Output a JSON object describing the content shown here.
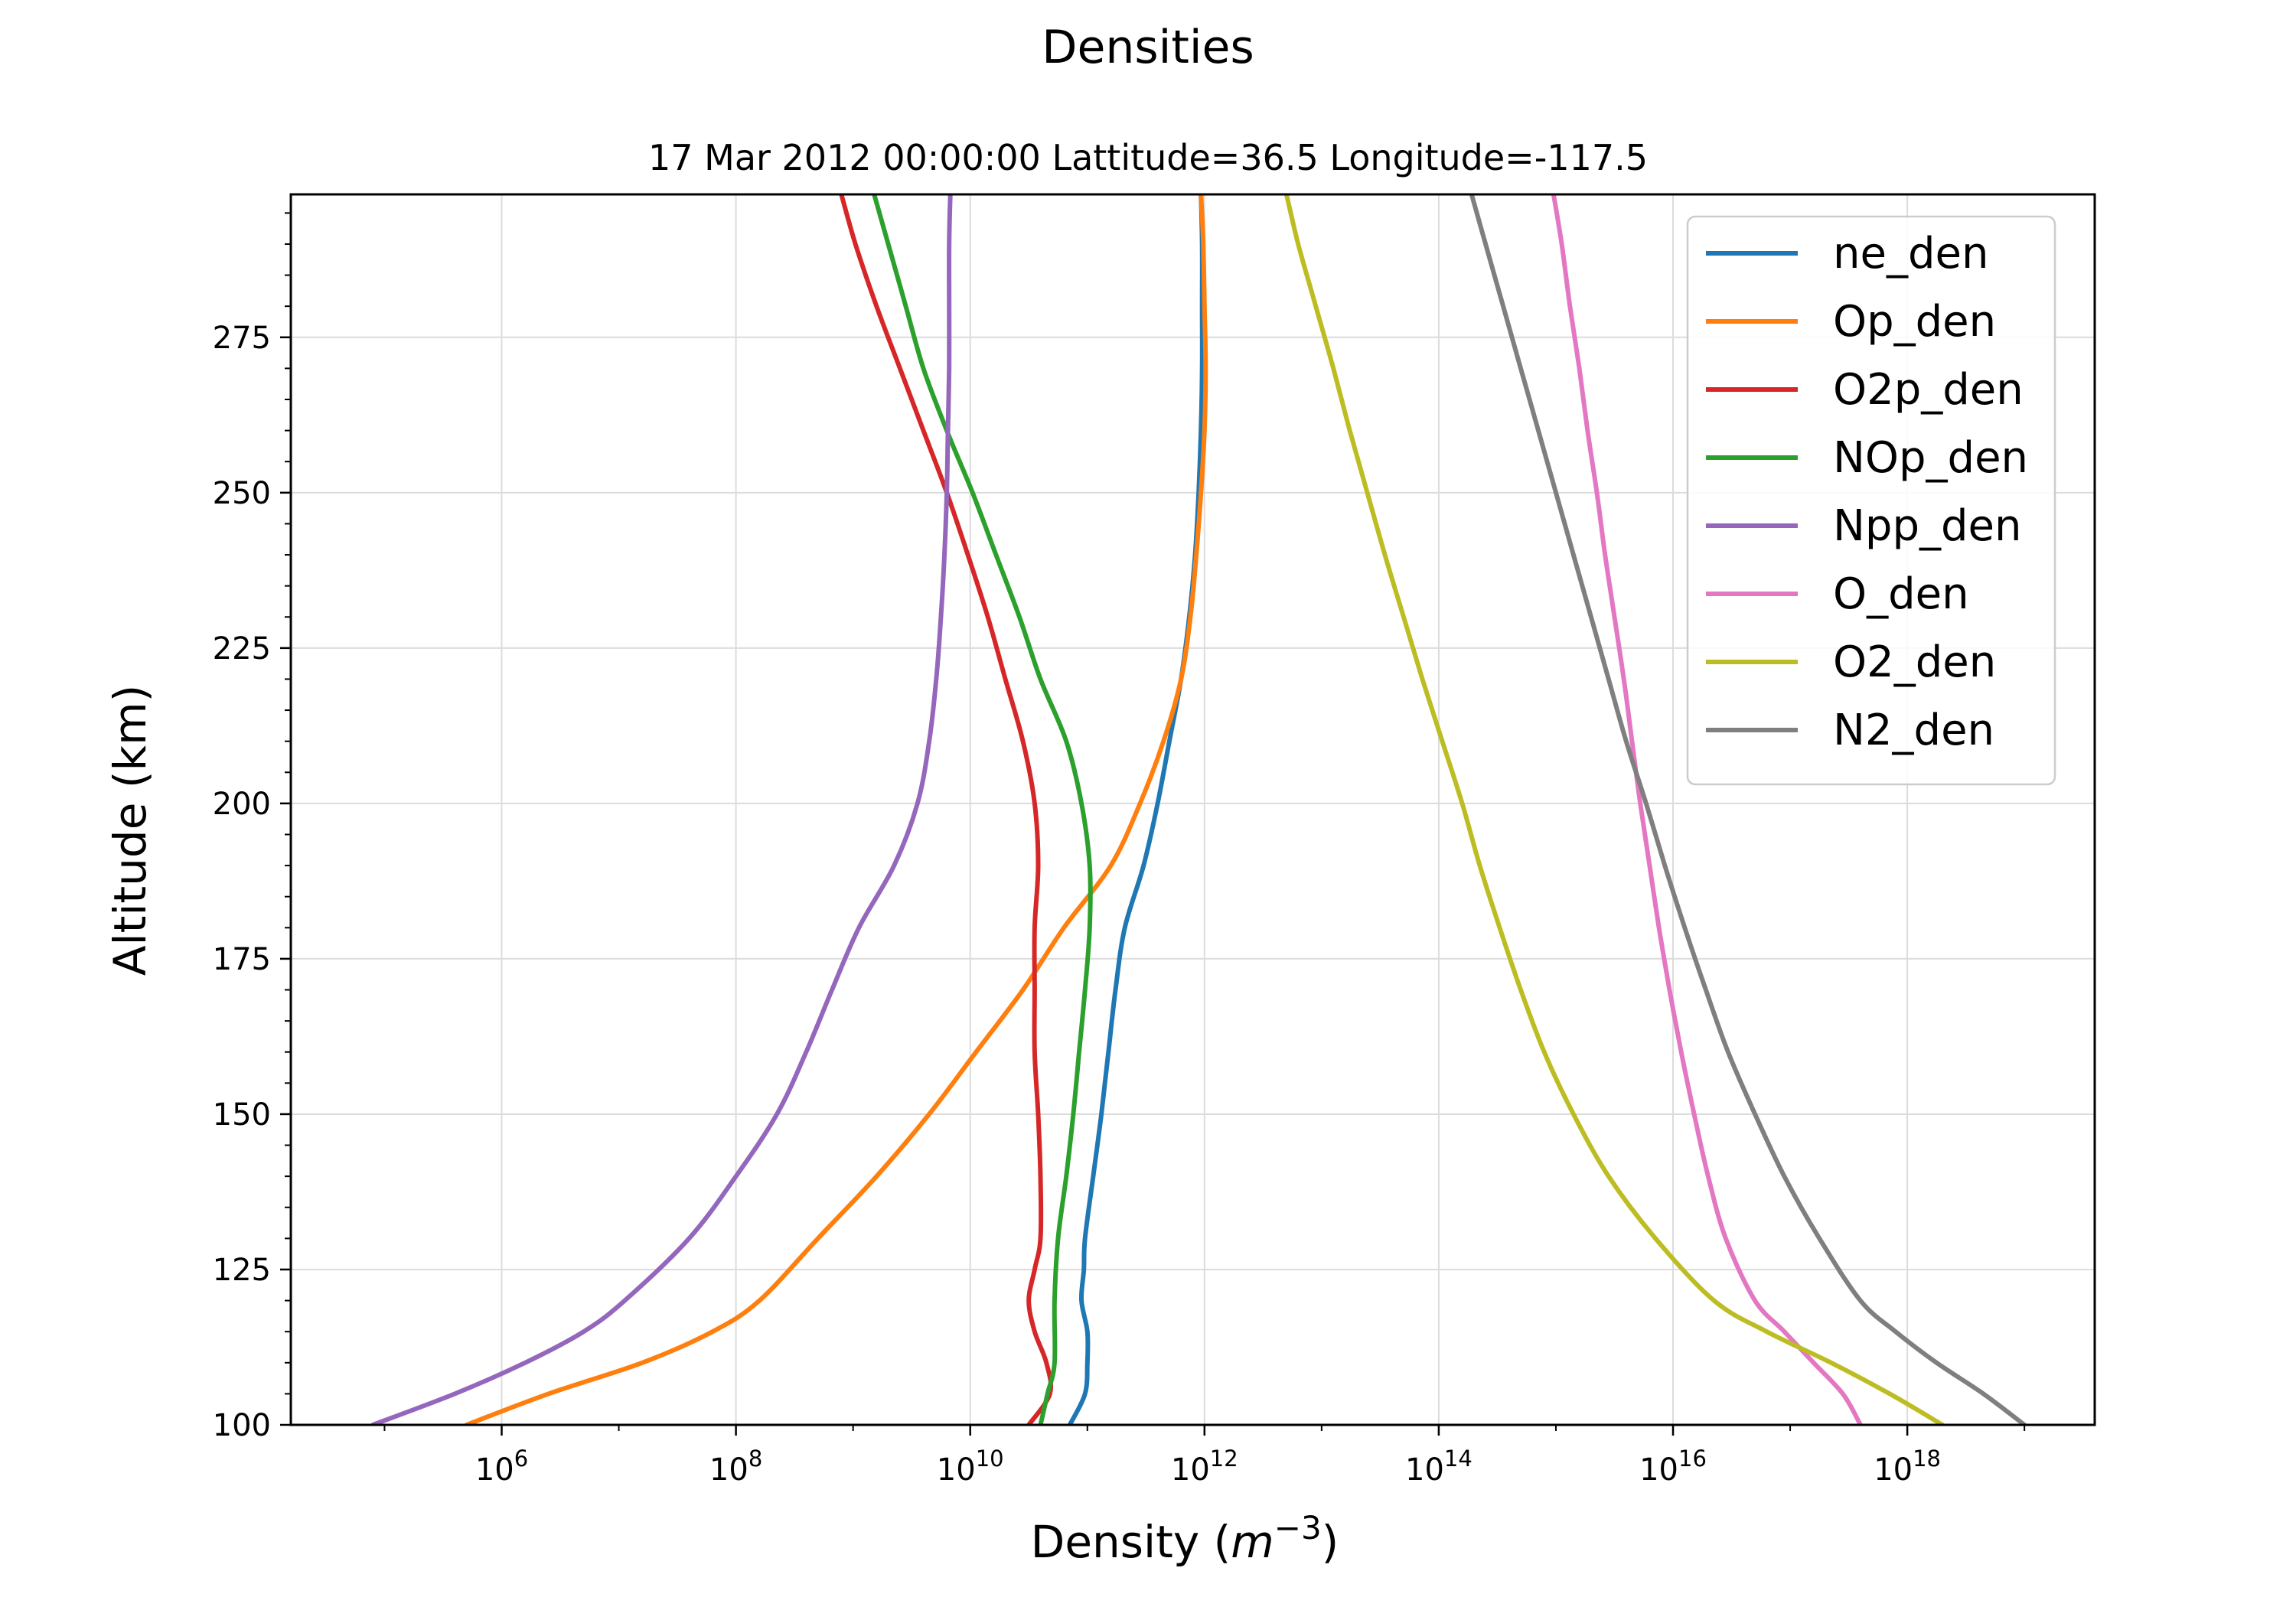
{
  "chart_data": {
    "type": "line",
    "title": "Densities",
    "subtitle": "17 Mar 2012 00:00:00 Lattitude=36.5 Longitude=-117.5",
    "xlabel": "Density ($m^{-3}$)",
    "xlabel_parts": {
      "prefix": "Density (",
      "var": "m",
      "exp": "−3",
      "suffix": ")"
    },
    "ylabel": "Altitude (km)",
    "xscale": "log",
    "xlim_exp": [
      4.2,
      19.6
    ],
    "ylim": [
      100,
      298
    ],
    "x_ticks": [
      {
        "base": "10",
        "exp": "6",
        "value_exp": 6
      },
      {
        "base": "10",
        "exp": "8",
        "value_exp": 8
      },
      {
        "base": "10",
        "exp": "10",
        "value_exp": 10
      },
      {
        "base": "10",
        "exp": "12",
        "value_exp": 12
      },
      {
        "base": "10",
        "exp": "14",
        "value_exp": 14
      },
      {
        "base": "10",
        "exp": "16",
        "value_exp": 16
      },
      {
        "base": "10",
        "exp": "18",
        "value_exp": 18
      }
    ],
    "y_ticks": [
      "100",
      "125",
      "150",
      "175",
      "200",
      "225",
      "250",
      "275"
    ],
    "grid": true,
    "legend_position": "top-right",
    "series": [
      {
        "name": "ne_den",
        "color": "#1f77b4",
        "points": [
          [
            100,
            10.85
          ],
          [
            105,
            10.98
          ],
          [
            110,
            11.0
          ],
          [
            115,
            11.0
          ],
          [
            120,
            10.95
          ],
          [
            125,
            10.97
          ],
          [
            130,
            10.98
          ],
          [
            140,
            11.05
          ],
          [
            150,
            11.12
          ],
          [
            160,
            11.18
          ],
          [
            170,
            11.24
          ],
          [
            180,
            11.32
          ],
          [
            190,
            11.48
          ],
          [
            200,
            11.6
          ],
          [
            210,
            11.7
          ],
          [
            220,
            11.8
          ],
          [
            230,
            11.87
          ],
          [
            240,
            11.92
          ],
          [
            250,
            11.95
          ],
          [
            260,
            11.97
          ],
          [
            270,
            11.98
          ],
          [
            280,
            11.98
          ],
          [
            290,
            11.98
          ],
          [
            298,
            11.97
          ]
        ]
      },
      {
        "name": "Op_den",
        "color": "#ff7f0e",
        "points": [
          [
            100,
            5.7
          ],
          [
            105,
            6.4
          ],
          [
            110,
            7.2
          ],
          [
            115,
            7.8
          ],
          [
            120,
            8.2
          ],
          [
            130,
            8.7
          ],
          [
            140,
            9.2
          ],
          [
            150,
            9.65
          ],
          [
            160,
            10.05
          ],
          [
            170,
            10.45
          ],
          [
            180,
            10.8
          ],
          [
            190,
            11.2
          ],
          [
            200,
            11.45
          ],
          [
            210,
            11.65
          ],
          [
            220,
            11.8
          ],
          [
            230,
            11.88
          ],
          [
            240,
            11.93
          ],
          [
            250,
            11.97
          ],
          [
            260,
            12.0
          ],
          [
            270,
            12.01
          ],
          [
            280,
            12.0
          ],
          [
            290,
            11.99
          ],
          [
            298,
            11.97
          ]
        ]
      },
      {
        "name": "O2p_den",
        "color": "#d62728",
        "points": [
          [
            100,
            10.5
          ],
          [
            105,
            10.68
          ],
          [
            110,
            10.65
          ],
          [
            115,
            10.55
          ],
          [
            120,
            10.5
          ],
          [
            125,
            10.55
          ],
          [
            130,
            10.6
          ],
          [
            140,
            10.6
          ],
          [
            150,
            10.58
          ],
          [
            160,
            10.55
          ],
          [
            170,
            10.55
          ],
          [
            180,
            10.55
          ],
          [
            190,
            10.58
          ],
          [
            200,
            10.55
          ],
          [
            210,
            10.45
          ],
          [
            220,
            10.3
          ],
          [
            230,
            10.15
          ],
          [
            240,
            9.98
          ],
          [
            250,
            9.8
          ],
          [
            260,
            9.6
          ],
          [
            270,
            9.4
          ],
          [
            280,
            9.2
          ],
          [
            290,
            9.02
          ],
          [
            298,
            8.9
          ]
        ]
      },
      {
        "name": "NOp_den",
        "color": "#2ca02c",
        "points": [
          [
            100,
            10.6
          ],
          [
            105,
            10.66
          ],
          [
            110,
            10.72
          ],
          [
            120,
            10.72
          ],
          [
            130,
            10.75
          ],
          [
            140,
            10.82
          ],
          [
            150,
            10.88
          ],
          [
            160,
            10.93
          ],
          [
            170,
            10.98
          ],
          [
            180,
            11.02
          ],
          [
            190,
            11.02
          ],
          [
            200,
            10.95
          ],
          [
            210,
            10.82
          ],
          [
            220,
            10.6
          ],
          [
            230,
            10.42
          ],
          [
            240,
            10.22
          ],
          [
            250,
            10.02
          ],
          [
            260,
            9.8
          ],
          [
            270,
            9.6
          ],
          [
            280,
            9.45
          ],
          [
            290,
            9.3
          ],
          [
            298,
            9.18
          ]
        ]
      },
      {
        "name": "Npp_den",
        "color": "#9467bd",
        "points": [
          [
            100,
            4.9
          ],
          [
            105,
            5.6
          ],
          [
            110,
            6.2
          ],
          [
            115,
            6.7
          ],
          [
            120,
            7.05
          ],
          [
            130,
            7.6
          ],
          [
            140,
            8.0
          ],
          [
            150,
            8.35
          ],
          [
            160,
            8.6
          ],
          [
            170,
            8.82
          ],
          [
            180,
            9.05
          ],
          [
            190,
            9.35
          ],
          [
            200,
            9.55
          ],
          [
            210,
            9.65
          ],
          [
            220,
            9.71
          ],
          [
            230,
            9.75
          ],
          [
            240,
            9.78
          ],
          [
            250,
            9.8
          ],
          [
            260,
            9.81
          ],
          [
            270,
            9.82
          ],
          [
            280,
            9.82
          ],
          [
            290,
            9.82
          ],
          [
            298,
            9.83
          ]
        ]
      },
      {
        "name": "O_den",
        "color": "#e377c2",
        "points": [
          [
            100,
            17.6
          ],
          [
            105,
            17.45
          ],
          [
            110,
            17.2
          ],
          [
            115,
            16.95
          ],
          [
            120,
            16.7
          ],
          [
            130,
            16.45
          ],
          [
            140,
            16.3
          ],
          [
            150,
            16.18
          ],
          [
            160,
            16.07
          ],
          [
            170,
            15.97
          ],
          [
            180,
            15.88
          ],
          [
            190,
            15.8
          ],
          [
            200,
            15.72
          ],
          [
            210,
            15.65
          ],
          [
            220,
            15.58
          ],
          [
            230,
            15.5
          ],
          [
            240,
            15.42
          ],
          [
            250,
            15.35
          ],
          [
            260,
            15.27
          ],
          [
            270,
            15.2
          ],
          [
            280,
            15.12
          ],
          [
            290,
            15.05
          ],
          [
            298,
            14.98
          ]
        ]
      },
      {
        "name": "O2_den",
        "color": "#bcbd22",
        "points": [
          [
            100,
            18.3
          ],
          [
            105,
            17.85
          ],
          [
            110,
            17.35
          ],
          [
            115,
            16.8
          ],
          [
            120,
            16.35
          ],
          [
            130,
            15.85
          ],
          [
            140,
            15.45
          ],
          [
            150,
            15.15
          ],
          [
            160,
            14.9
          ],
          [
            170,
            14.7
          ],
          [
            180,
            14.52
          ],
          [
            190,
            14.35
          ],
          [
            200,
            14.2
          ],
          [
            210,
            14.03
          ],
          [
            220,
            13.86
          ],
          [
            230,
            13.7
          ],
          [
            240,
            13.54
          ],
          [
            250,
            13.39
          ],
          [
            260,
            13.24
          ],
          [
            270,
            13.1
          ],
          [
            280,
            12.95
          ],
          [
            290,
            12.8
          ],
          [
            298,
            12.7
          ]
        ]
      },
      {
        "name": "N2_den",
        "color": "#7f7f7f",
        "points": [
          [
            100,
            19.0
          ],
          [
            105,
            18.65
          ],
          [
            110,
            18.25
          ],
          [
            115,
            17.9
          ],
          [
            120,
            17.6
          ],
          [
            130,
            17.25
          ],
          [
            140,
            16.95
          ],
          [
            150,
            16.7
          ],
          [
            160,
            16.47
          ],
          [
            170,
            16.28
          ],
          [
            180,
            16.1
          ],
          [
            190,
            15.93
          ],
          [
            200,
            15.77
          ],
          [
            210,
            15.6
          ],
          [
            220,
            15.45
          ],
          [
            230,
            15.3
          ],
          [
            240,
            15.15
          ],
          [
            250,
            15.0
          ],
          [
            260,
            14.85
          ],
          [
            270,
            14.7
          ],
          [
            280,
            14.55
          ],
          [
            290,
            14.4
          ],
          [
            298,
            14.28
          ]
        ]
      }
    ]
  }
}
